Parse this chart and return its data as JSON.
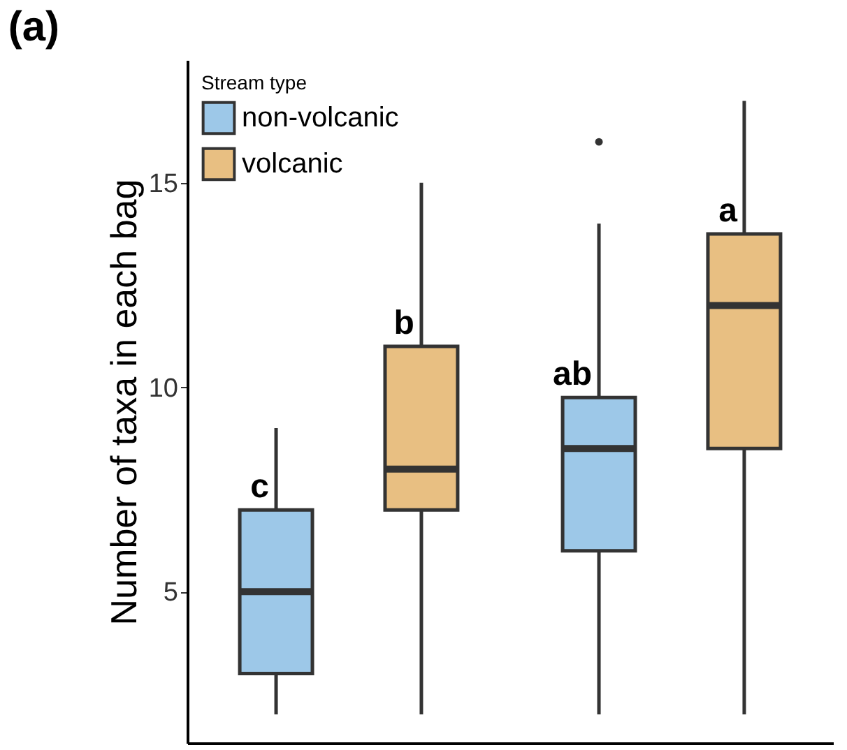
{
  "chart_data": {
    "type": "box",
    "title": "(a)",
    "ylabel": "Number of taxa in each bag",
    "legend_title": "Stream type",
    "categories": [
      null,
      null
    ],
    "series": [
      {
        "name": "non-volcanic",
        "color": "#9dc8e8",
        "boxes": [
          {
            "low": 2,
            "q1": 3,
            "median": 5,
            "q3": 7,
            "high": 9
          },
          {
            "low": 2,
            "q1": 6,
            "median": 8.5,
            "q3": 9.75,
            "high": 14,
            "outliers": [
              16
            ]
          }
        ]
      },
      {
        "name": "volcanic",
        "color": "#e8bf82",
        "boxes": [
          {
            "low": 2,
            "q1": 7,
            "median": 8,
            "q3": 11,
            "high": 15
          },
          {
            "low": 2,
            "q1": 8.5,
            "median": 12,
            "q3": 13.75,
            "high": 17
          }
        ]
      }
    ],
    "annotations": [
      "c",
      "b",
      "ab",
      "a"
    ],
    "ylim": [
      1.3,
      18
    ],
    "yticks": [
      5,
      10,
      15
    ],
    "grid": false,
    "legend": "top left",
    "tick_labels": "y"
  }
}
